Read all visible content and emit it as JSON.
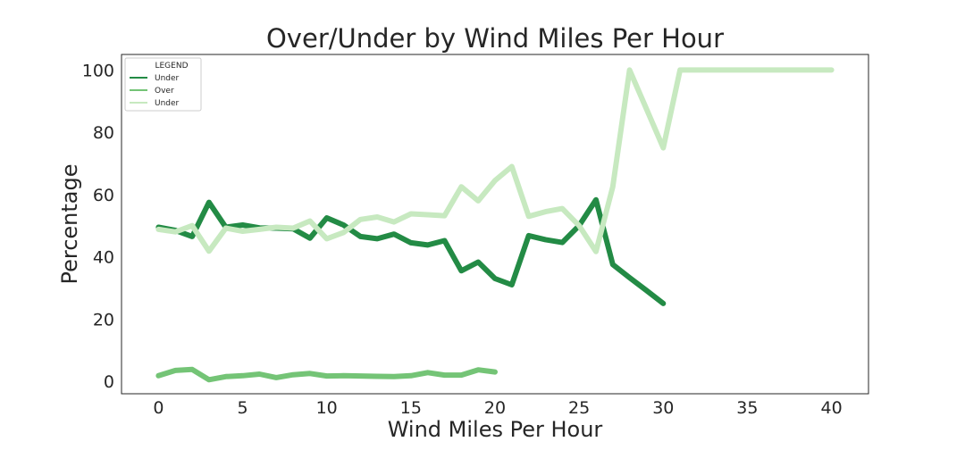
{
  "chart_data": {
    "type": "line",
    "title": "Over/Under by Wind Miles Per Hour",
    "xlabel": "Wind Miles Per Hour",
    "ylabel": "Percentage",
    "xlim": [
      -2.2,
      42.2
    ],
    "ylim": [
      -4,
      105
    ],
    "xticks": [
      0,
      5,
      10,
      15,
      20,
      25,
      30,
      35,
      40
    ],
    "yticks": [
      0,
      20,
      40,
      60,
      80,
      100
    ],
    "grid": false,
    "legend": {
      "title": "LEGEND",
      "placement": "top-left"
    },
    "series": [
      {
        "name": "Under",
        "color": "#238b45",
        "x": [
          0,
          1,
          2,
          3,
          4,
          5,
          6,
          7,
          8,
          9,
          10,
          11,
          12,
          13,
          14,
          15,
          16,
          17,
          18,
          19,
          20,
          21,
          22,
          23,
          24,
          25,
          26,
          27,
          28,
          29,
          30
        ],
        "values": [
          49.5,
          48.5,
          46.5,
          57.5,
          49.5,
          50.2,
          49.3,
          49.2,
          49,
          46,
          52.5,
          50.2,
          46.5,
          45.8,
          47.3,
          44.5,
          43.8,
          45.2,
          35.5,
          38.3,
          33,
          31,
          46.8,
          45.5,
          44.6,
          50,
          58.3,
          37.5,
          33.3,
          29.2,
          25
        ]
      },
      {
        "name": "Over",
        "color": "#74c476",
        "x": [
          0,
          1,
          2,
          3,
          4,
          5,
          6,
          7,
          8,
          9,
          10,
          11,
          12,
          13,
          14,
          15,
          16,
          17,
          18,
          19,
          20
        ],
        "values": [
          1.8,
          3.5,
          3.8,
          0.5,
          1.5,
          1.8,
          2.3,
          1.2,
          2.1,
          2.5,
          1.7,
          1.8,
          1.7,
          1.6,
          1.5,
          1.8,
          2.8,
          2,
          2,
          3.7,
          3
        ]
      },
      {
        "name": "Under",
        "color": "#c7e9c0",
        "x": [
          0,
          1,
          2,
          3,
          4,
          5,
          6,
          7,
          8,
          9,
          10,
          11,
          12,
          13,
          14,
          15,
          16,
          17,
          18,
          19,
          20,
          21,
          22,
          23,
          24,
          25,
          26,
          27,
          28,
          29,
          30,
          31,
          32,
          33,
          34,
          35,
          36,
          37,
          38,
          39,
          40
        ],
        "values": [
          48.8,
          48,
          50,
          41.8,
          49.2,
          48.2,
          48.8,
          49.5,
          49.2,
          51.5,
          45.8,
          47.8,
          52,
          52.8,
          51.2,
          53.8,
          53.5,
          53.2,
          62.5,
          58,
          64.5,
          69,
          53,
          54.5,
          55.5,
          50,
          41.7,
          62.5,
          100,
          87.5,
          75,
          100,
          100,
          100,
          100,
          100,
          100,
          100,
          100,
          100,
          100
        ]
      }
    ]
  }
}
